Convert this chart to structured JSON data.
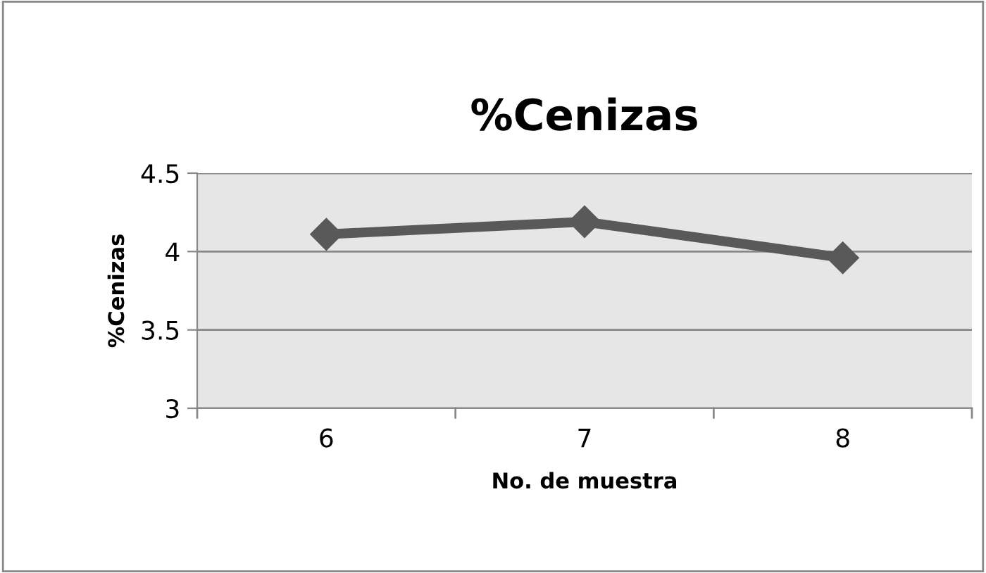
{
  "chart_data": {
    "type": "line",
    "title": "%Cenizas",
    "xlabel": "No. de muestra",
    "ylabel": "%Cenizas",
    "categories": [
      "6",
      "7",
      "8"
    ],
    "series": [
      {
        "color": "#595959",
        "values": [
          4.11,
          4.19,
          3.96
        ]
      }
    ],
    "ylim": [
      3,
      4.5
    ],
    "yticks": [
      3,
      3.5,
      4,
      4.5
    ],
    "grid": "y",
    "legend": false,
    "marker": "diamond",
    "line_style": "solid"
  }
}
